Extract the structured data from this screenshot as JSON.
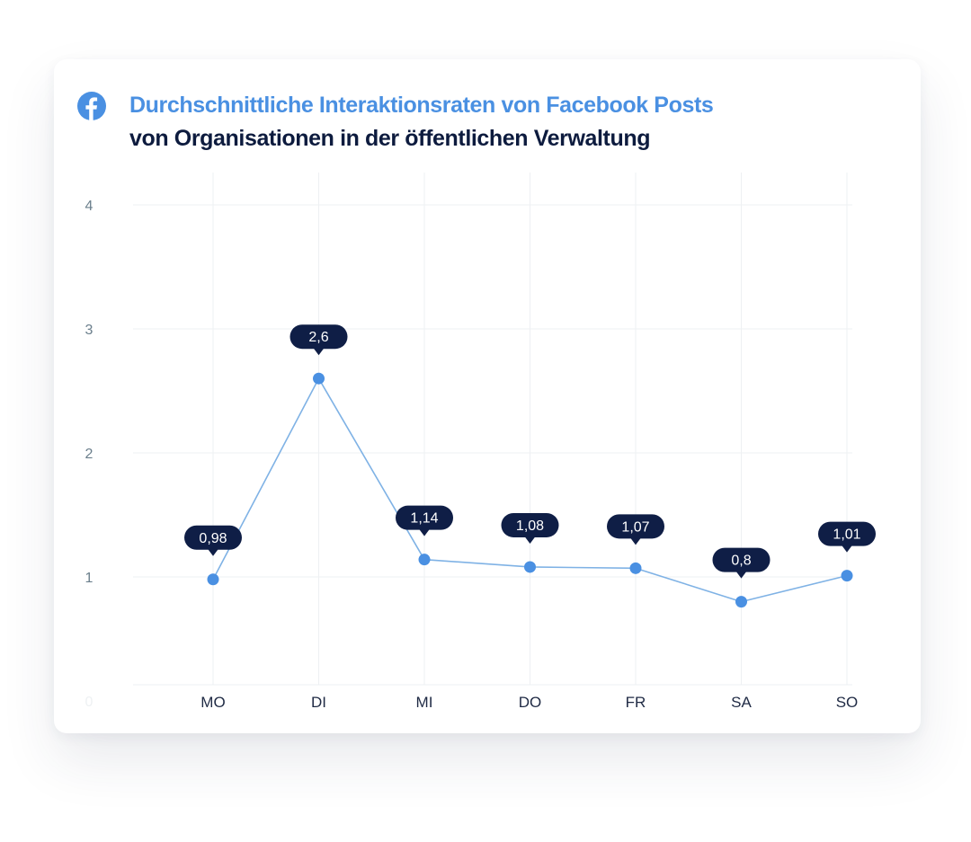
{
  "header": {
    "title": "Durchschnittliche Interaktionsraten von Facebook Posts",
    "subtitle": "von Organisationen in der öffentlichen Verwaltung",
    "icon": "facebook-icon"
  },
  "colors": {
    "accent": "#4a90e2",
    "title": "#4a90e2",
    "subtitle": "#0d1b3e",
    "line": "#7fb2e5",
    "point": "#4a90e2",
    "label_bg": "#0f1e46",
    "label_text": "#ffffff",
    "grid": "#eef0f3",
    "tick_text_y": "#6b7f8c",
    "tick_text_x": "#1f2a44"
  },
  "chart_data": {
    "type": "line",
    "categories": [
      "MO",
      "DI",
      "MI",
      "DO",
      "FR",
      "SA",
      "SO"
    ],
    "series": [
      {
        "values": [
          0.98,
          2.6,
          1.14,
          1.08,
          1.07,
          0.8,
          1.01
        ],
        "labels": [
          "0,98",
          "2,6",
          "1,14",
          "1,08",
          "1,07",
          "0,8",
          "1,01"
        ]
      }
    ],
    "yticks": [
      "0",
      "1",
      "2",
      "3",
      "4"
    ],
    "ylim": [
      0,
      4
    ],
    "title": "Durchschnittliche Interaktionsraten von Facebook Posts",
    "subtitle": "von Organisationen in der öffentlichen Verwaltung",
    "xlabel": "",
    "ylabel": "",
    "grid": true,
    "legend": "none"
  }
}
